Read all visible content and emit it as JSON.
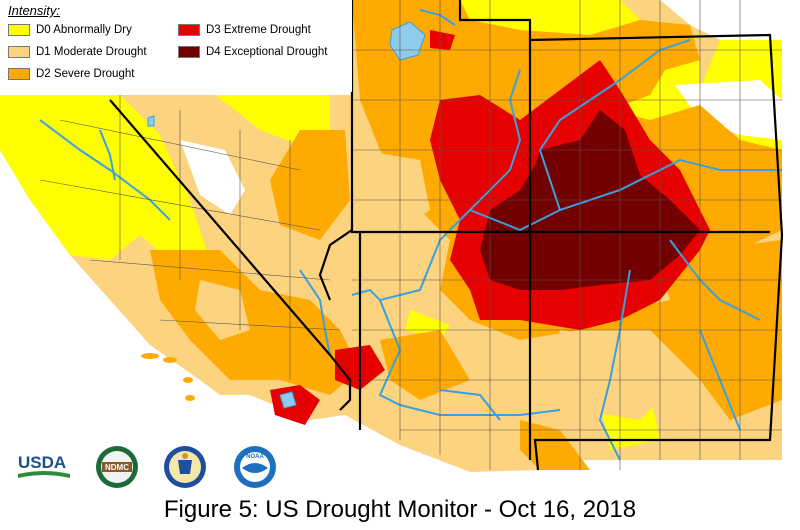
{
  "legend": {
    "title": "Intensity:",
    "items": [
      {
        "label": "D0 Abnormally Dry",
        "color": "#ffff00"
      },
      {
        "label": "D1 Moderate Drought",
        "color": "#fcd37f"
      },
      {
        "label": "D2 Severe Drought",
        "color": "#ffaa00"
      },
      {
        "label": "D3 Extreme Drought",
        "color": "#e60000"
      },
      {
        "label": "D4 Exceptional Drought",
        "color": "#730000"
      }
    ]
  },
  "logos": [
    {
      "name": "usda-logo",
      "text": "USDA"
    },
    {
      "name": "ndmc-logo",
      "text": "NDMC"
    },
    {
      "name": "doc-seal-logo",
      "text": ""
    },
    {
      "name": "noaa-logo",
      "text": "NOAA"
    }
  ],
  "caption": "Figure 5: US Drought Monitor - Oct 16, 2018",
  "colors": {
    "none": "#ffffff",
    "water": "#3aa0e0",
    "lake": "#8fcbea",
    "border": "#000000",
    "county": "#555555"
  }
}
